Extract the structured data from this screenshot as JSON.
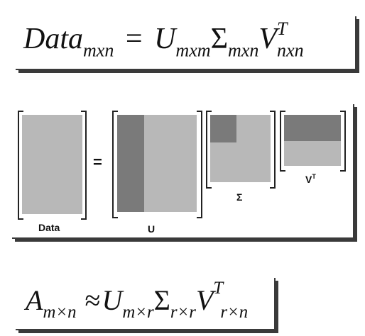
{
  "equation_top": {
    "lhs": "Data",
    "lhs_sub": "mxn",
    "eq": "=",
    "u": "U",
    "u_sub": "mxm",
    "sigma": "Σ",
    "sigma_sub": "mxn",
    "v": "V",
    "v_sup": "T",
    "v_sub": "nxn"
  },
  "diagram": {
    "data_label": "Data",
    "eq_sign": "=",
    "u_label": "U",
    "sigma_label": "Σ",
    "vt_label": "V",
    "vt_sup": "T",
    "colors": {
      "light": "#b8b8b8",
      "dark": "#7a7a7a"
    }
  },
  "equation_bottom": {
    "a": "A",
    "a_sub": "m×n",
    "approx": "≈",
    "u": "U",
    "u_sub": "m×r",
    "sigma": "Σ",
    "sigma_sub": "r×r",
    "v": "V",
    "v_sup": "T",
    "v_sub": "r×n"
  }
}
